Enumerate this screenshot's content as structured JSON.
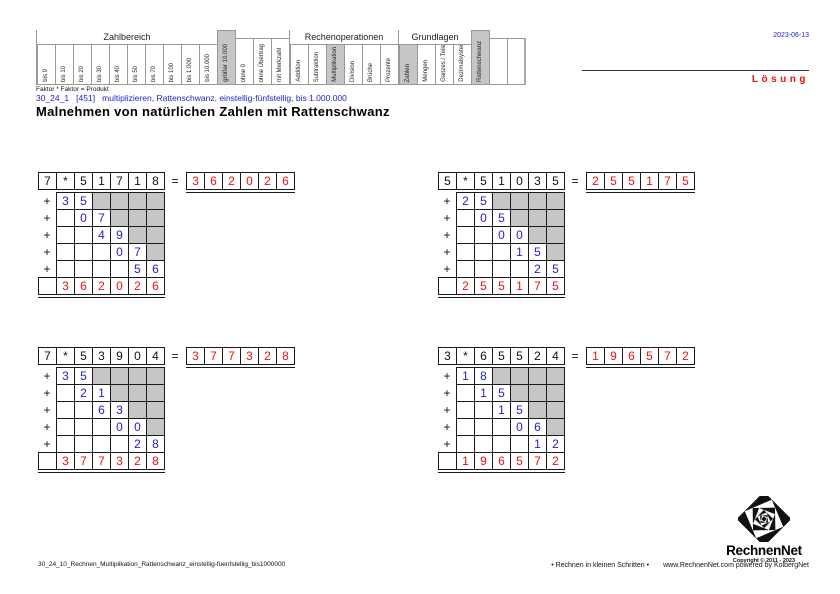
{
  "colors": {
    "accent_blue": "#2222cc",
    "accent_red": "#ee1111",
    "highlight_gray": "#c6c6c6"
  },
  "header": {
    "date": "2023-06-13",
    "solution_label": "Lösung"
  },
  "classification": {
    "segments": [
      {
        "group": "Zahlbereich",
        "cells": [
          {
            "label": "bis 9"
          },
          {
            "label": "bis 10"
          },
          {
            "label": "bis 20"
          },
          {
            "label": "bis 30"
          },
          {
            "label": "bis 40"
          },
          {
            "label": "bis 50"
          },
          {
            "label": "bis 70"
          },
          {
            "label": "bis 100"
          },
          {
            "label": "bis 1.000"
          },
          {
            "label": "bis 10.000"
          }
        ]
      },
      {
        "cells": [
          {
            "label": "größer 10.000",
            "size": "tall",
            "highlight": true
          }
        ]
      },
      {
        "cells": [
          {
            "label": "ohne 0",
            "size": "mid"
          },
          {
            "label": "ohne Übertrag",
            "size": "mid"
          },
          {
            "label": "mit Merkzahl",
            "size": "mid"
          }
        ]
      },
      {
        "group": "Rechenoperationen",
        "cells": [
          {
            "label": "Addition"
          },
          {
            "label": "Subtraktion"
          },
          {
            "label": "Multiplikation",
            "highlight": true
          },
          {
            "label": "Division"
          },
          {
            "label": "Brüche"
          },
          {
            "label": "Prozente"
          }
        ]
      },
      {
        "group": "Grundlagen",
        "cells": [
          {
            "label": "Zahlen",
            "highlight": true
          },
          {
            "label": "Mengen"
          },
          {
            "label": "Ganzes / Teile"
          },
          {
            "label": "Dezimalsystem"
          }
        ]
      },
      {
        "cells": [
          {
            "label": "Rattenschwanz",
            "size": "tall",
            "highlight": true
          }
        ]
      },
      {
        "cells": [
          {
            "label": "",
            "size": "mid"
          },
          {
            "label": "",
            "size": "mid",
            "end": true
          }
        ]
      }
    ]
  },
  "texts": {
    "faktor_note": "Faktor * Faktor = Produkt",
    "subtitle": "30_24_1   [451]   multiplizieren, Rattenschwanz, einstellig-fünfstellig, bis 1.000.000",
    "title": "Malnehmen von natürlichen Zahlen mit Rattenschwanz"
  },
  "puzzle_ui": {
    "equals": "=",
    "plus": "+"
  },
  "puzzles": [
    {
      "multiplier": "7",
      "operator": "*",
      "factor": [
        "5",
        "1",
        "7",
        "1",
        "8"
      ],
      "partials": [
        [
          "3",
          "5"
        ],
        [
          "0",
          "7"
        ],
        [
          "4",
          "9"
        ],
        [
          "0",
          "7"
        ],
        [
          "5",
          "6"
        ]
      ],
      "result": [
        "3",
        "6",
        "2",
        "0",
        "2",
        "6"
      ]
    },
    {
      "multiplier": "5",
      "operator": "*",
      "factor": [
        "5",
        "1",
        "0",
        "3",
        "5"
      ],
      "partials": [
        [
          "2",
          "5"
        ],
        [
          "0",
          "5"
        ],
        [
          "0",
          "0"
        ],
        [
          "1",
          "5"
        ],
        [
          "2",
          "5"
        ]
      ],
      "result": [
        "2",
        "5",
        "5",
        "1",
        "7",
        "5"
      ]
    },
    {
      "multiplier": "7",
      "operator": "*",
      "factor": [
        "5",
        "3",
        "9",
        "0",
        "4"
      ],
      "partials": [
        [
          "3",
          "5"
        ],
        [
          "2",
          "1"
        ],
        [
          "6",
          "3"
        ],
        [
          "0",
          "0"
        ],
        [
          "2",
          "8"
        ]
      ],
      "result": [
        "3",
        "7",
        "7",
        "3",
        "2",
        "8"
      ]
    },
    {
      "multiplier": "3",
      "operator": "*",
      "factor": [
        "6",
        "5",
        "5",
        "2",
        "4"
      ],
      "partials": [
        [
          "1",
          "8"
        ],
        [
          "1",
          "5"
        ],
        [
          "1",
          "5"
        ],
        [
          "0",
          "6"
        ],
        [
          "1",
          "2"
        ]
      ],
      "result": [
        "1",
        "9",
        "6",
        "5",
        "7",
        "2"
      ]
    }
  ],
  "footer": {
    "file_label": "30_24_10_Rechnen_Multiplikation_Rattenschwanz_einstellig-fuenfstellig_bis1000000",
    "slogan": "• Rechnen in kleinen Schritten •",
    "site": "www.RechnenNet.com powered by KolbergNet"
  },
  "logo": {
    "name": "RechnenNet",
    "copyright": "Copyright © 2011 - 2023"
  }
}
